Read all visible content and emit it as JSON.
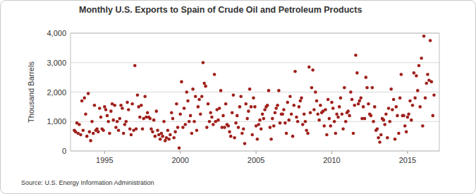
{
  "chart_data": {
    "type": "scatter",
    "title": "Monthly U.S. Exports to Spain of Crude Oil and Petroleum Products",
    "y_label": "Thousand Barrels",
    "source": "Source: U.S. Energy Information Administration",
    "color": "#a0201c",
    "marker": "circle",
    "grid": true,
    "xlim": [
      1992.75,
      2017.1
    ],
    "xticks": [
      1995,
      2000,
      2005,
      2010,
      2015
    ],
    "ylim": [
      0,
      4000
    ],
    "yticks": [
      0,
      {
        "value": 1000,
        "label": "1,000"
      },
      {
        "value": 2000,
        "label": "2,000"
      },
      {
        "value": 3000,
        "label": "3,000"
      },
      {
        "value": 4000,
        "label": "4,000"
      }
    ],
    "x": [
      1993.0,
      1993.08,
      1993.17,
      1993.25,
      1993.33,
      1993.42,
      1993.5,
      1993.58,
      1993.67,
      1993.75,
      1993.83,
      1993.92,
      1994.0,
      1994.08,
      1994.17,
      1994.25,
      1994.33,
      1994.42,
      1994.5,
      1994.58,
      1994.67,
      1994.75,
      1994.83,
      1994.92,
      1995.0,
      1995.08,
      1995.17,
      1995.25,
      1995.33,
      1995.42,
      1995.5,
      1995.58,
      1995.67,
      1995.75,
      1995.83,
      1995.92,
      1996.0,
      1996.08,
      1996.17,
      1996.25,
      1996.33,
      1996.42,
      1996.5,
      1996.58,
      1996.67,
      1996.75,
      1996.83,
      1996.92,
      1997.0,
      1997.08,
      1997.17,
      1997.25,
      1997.33,
      1997.42,
      1997.5,
      1997.58,
      1997.67,
      1997.75,
      1997.83,
      1997.92,
      1998.0,
      1998.08,
      1998.17,
      1998.25,
      1998.33,
      1998.42,
      1998.5,
      1998.58,
      1998.67,
      1998.75,
      1998.83,
      1998.92,
      1999.0,
      1999.08,
      1999.17,
      1999.25,
      1999.33,
      1999.42,
      1999.5,
      1999.58,
      1999.67,
      1999.75,
      1999.83,
      1999.92,
      2000.0,
      2000.08,
      2000.17,
      2000.25,
      2000.33,
      2000.42,
      2000.5,
      2000.58,
      2000.67,
      2000.75,
      2000.83,
      2000.92,
      2001.0,
      2001.08,
      2001.17,
      2001.25,
      2001.33,
      2001.42,
      2001.5,
      2001.58,
      2001.67,
      2001.75,
      2001.83,
      2001.92,
      2002.0,
      2002.08,
      2002.17,
      2002.25,
      2002.33,
      2002.42,
      2002.5,
      2002.58,
      2002.67,
      2002.75,
      2002.83,
      2002.92,
      2003.0,
      2003.08,
      2003.17,
      2003.25,
      2003.33,
      2003.42,
      2003.5,
      2003.58,
      2003.67,
      2003.75,
      2003.83,
      2003.92,
      2004.0,
      2004.08,
      2004.17,
      2004.25,
      2004.33,
      2004.42,
      2004.5,
      2004.58,
      2004.67,
      2004.75,
      2004.83,
      2004.92,
      2005.0,
      2005.08,
      2005.17,
      2005.25,
      2005.33,
      2005.42,
      2005.5,
      2005.58,
      2005.67,
      2005.75,
      2005.83,
      2005.92,
      2006.0,
      2006.08,
      2006.17,
      2006.25,
      2006.33,
      2006.42,
      2006.5,
      2006.58,
      2006.67,
      2006.75,
      2006.83,
      2006.92,
      2007.0,
      2007.08,
      2007.17,
      2007.25,
      2007.33,
      2007.42,
      2007.5,
      2007.58,
      2007.67,
      2007.75,
      2007.83,
      2007.92,
      2008.0,
      2008.08,
      2008.17,
      2008.25,
      2008.33,
      2008.42,
      2008.5,
      2008.58,
      2008.67,
      2008.75,
      2008.83,
      2008.92,
      2009.0,
      2009.08,
      2009.17,
      2009.25,
      2009.33,
      2009.42,
      2009.5,
      2009.58,
      2009.67,
      2009.75,
      2009.83,
      2009.92,
      2010.0,
      2010.08,
      2010.17,
      2010.25,
      2010.33,
      2010.42,
      2010.5,
      2010.58,
      2010.67,
      2010.75,
      2010.83,
      2010.92,
      2011.0,
      2011.08,
      2011.17,
      2011.25,
      2011.33,
      2011.42,
      2011.5,
      2011.58,
      2011.67,
      2011.75,
      2011.83,
      2011.92,
      2012.0,
      2012.08,
      2012.17,
      2012.25,
      2012.33,
      2012.42,
      2012.5,
      2012.58,
      2012.67,
      2012.75,
      2012.83,
      2012.92,
      2013.0,
      2013.08,
      2013.17,
      2013.25,
      2013.33,
      2013.42,
      2013.5,
      2013.58,
      2013.67,
      2013.75,
      2013.83,
      2013.92,
      2014.0,
      2014.08,
      2014.17,
      2014.25,
      2014.33,
      2014.42,
      2014.5,
      2014.58,
      2014.67,
      2014.75,
      2014.83,
      2014.92,
      2015.0,
      2015.08,
      2015.17,
      2015.25,
      2015.33,
      2015.42,
      2015.5,
      2015.58,
      2015.67,
      2015.75,
      2015.83,
      2015.92,
      2016.0,
      2016.08,
      2016.17,
      2016.25,
      2016.33,
      2016.42,
      2016.5,
      2016.58,
      2016.67,
      2016.75
    ],
    "values": [
      700,
      650,
      950,
      600,
      900,
      550,
      1700,
      700,
      1800,
      1250,
      500,
      1950,
      650,
      350,
      1000,
      600,
      1550,
      700,
      750,
      650,
      1450,
      1150,
      750,
      700,
      1500,
      1400,
      1200,
      1000,
      600,
      1350,
      1600,
      1050,
      1550,
      800,
      1000,
      700,
      1100,
      1550,
      1450,
      600,
      900,
      1000,
      1650,
      1400,
      750,
      550,
      1600,
      700,
      2900,
      750,
      1900,
      1500,
      1150,
      1550,
      750,
      1100,
      1850,
      1150,
      1300,
      1150,
      1100,
      750,
      650,
      1050,
      500,
      1350,
      700,
      550,
      400,
      600,
      500,
      1000,
      350,
      450,
      700,
      400,
      550,
      1300,
      1100,
      450,
      650,
      1600,
      800,
      100,
      1250,
      2350,
      800,
      1450,
      900,
      2000,
      1700,
      1000,
      1200,
      600,
      2100,
      1000,
      1850,
      700,
      1500,
      1750,
      1250,
      1850,
      3000,
      2300,
      2200,
      800,
      1600,
      1000,
      1300,
      1150,
      900,
      2600,
      1000,
      1400,
      1050,
      1450,
      2050,
      800,
      1200,
      800,
      1600,
      900,
      850,
      650,
      500,
      1300,
      1900,
      450,
      950,
      1200,
      800,
      1500,
      1850,
      600,
      750,
      250,
      1600,
      1100,
      1350,
      2100,
      1500,
      550,
      1800,
      1500,
      850,
      400,
      900,
      1050,
      750,
      1250,
      1100,
      1400,
      1500,
      1550,
      2050,
      800,
      400,
      1100,
      850,
      1300,
      1450,
      1550,
      2050,
      950,
      1250,
      1250,
      1400,
      950,
      600,
      1650,
      1050,
      1850,
      1250,
      500,
      1550,
      2700,
      1150,
      1000,
      1500,
      1700,
      1800,
      900,
      1250,
      1000,
      700,
      600,
      2850,
      1300,
      2150,
      2750,
      1400,
      2000,
      1700,
      1250,
      1050,
      1550,
      1300,
      1350,
      850,
      1400,
      550,
      1750,
      1100,
      850,
      1650,
      1450,
      1000,
      600,
      1250,
      1150,
      1500,
      1800,
      1250,
      750,
      2150,
      1000,
      1300,
      1350,
      1200,
      2000,
      1750,
      600,
      1550,
      3250,
      2650,
      1600,
      1700,
      1800,
      1100,
      1500,
      1100,
      2500,
      2150,
      1600,
      1250,
      1200,
      2150,
      1000,
      1500,
      700,
      750,
      450,
      300,
      550,
      1100,
      1050,
      900,
      1250,
      450,
      1450,
      1000,
      2100,
      1400,
      1750,
      400,
      1500,
      1200,
      600,
      1800,
      2600,
      1200,
      1200,
      850,
      650,
      1150,
      1250,
      1700,
      1050,
      1550,
      2650,
      1800,
      2550,
      2050,
      2900,
      1500,
      3150,
      850,
      3900,
      1800,
      2300,
      2600,
      2400,
      3750,
      2350,
      1200,
      1900
    ]
  }
}
